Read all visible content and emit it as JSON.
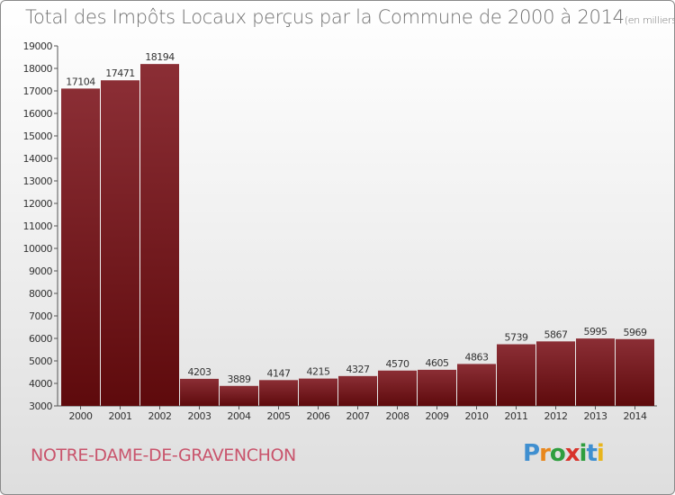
{
  "header": {
    "title": "Total des Impôts Locaux perçus par la Commune de 2000 à 2014",
    "unit": "(en milliers d'€)"
  },
  "footer": {
    "commune": "NOTRE-DAME-DE-GRAVENCHON",
    "logo": {
      "letters": [
        "P",
        "r",
        "o",
        "x",
        "i",
        "t",
        "i"
      ]
    }
  },
  "colors": {
    "bar_top": "#8b2e35",
    "bar_bottom": "#5e0a0c",
    "commune": "#c9546c",
    "logo": [
      "#3f8fd0",
      "#e8871d",
      "#2f9e3f",
      "#d8332b",
      "#2f9e3f",
      "#3f8fd0",
      "#e8b51d"
    ]
  },
  "chart_data": {
    "type": "bar",
    "title": "Total des Impôts Locaux perçus par la Commune de 2000 à 2014",
    "xlabel": "",
    "ylabel": "",
    "categories": [
      "2000",
      "2001",
      "2002",
      "2003",
      "2004",
      "2005",
      "2006",
      "2007",
      "2008",
      "2009",
      "2010",
      "2011",
      "2012",
      "2013",
      "2014"
    ],
    "values": [
      17104,
      17471,
      18194,
      4203,
      3889,
      4147,
      4215,
      4327,
      4570,
      4605,
      4863,
      5739,
      5867,
      5995,
      5969
    ],
    "ylim": [
      3000,
      19000
    ],
    "yticks": [
      3000,
      4000,
      5000,
      6000,
      7000,
      8000,
      9000,
      10000,
      11000,
      12000,
      13000,
      14000,
      15000,
      16000,
      17000,
      18000,
      19000
    ],
    "grid": false,
    "legend": "none"
  }
}
